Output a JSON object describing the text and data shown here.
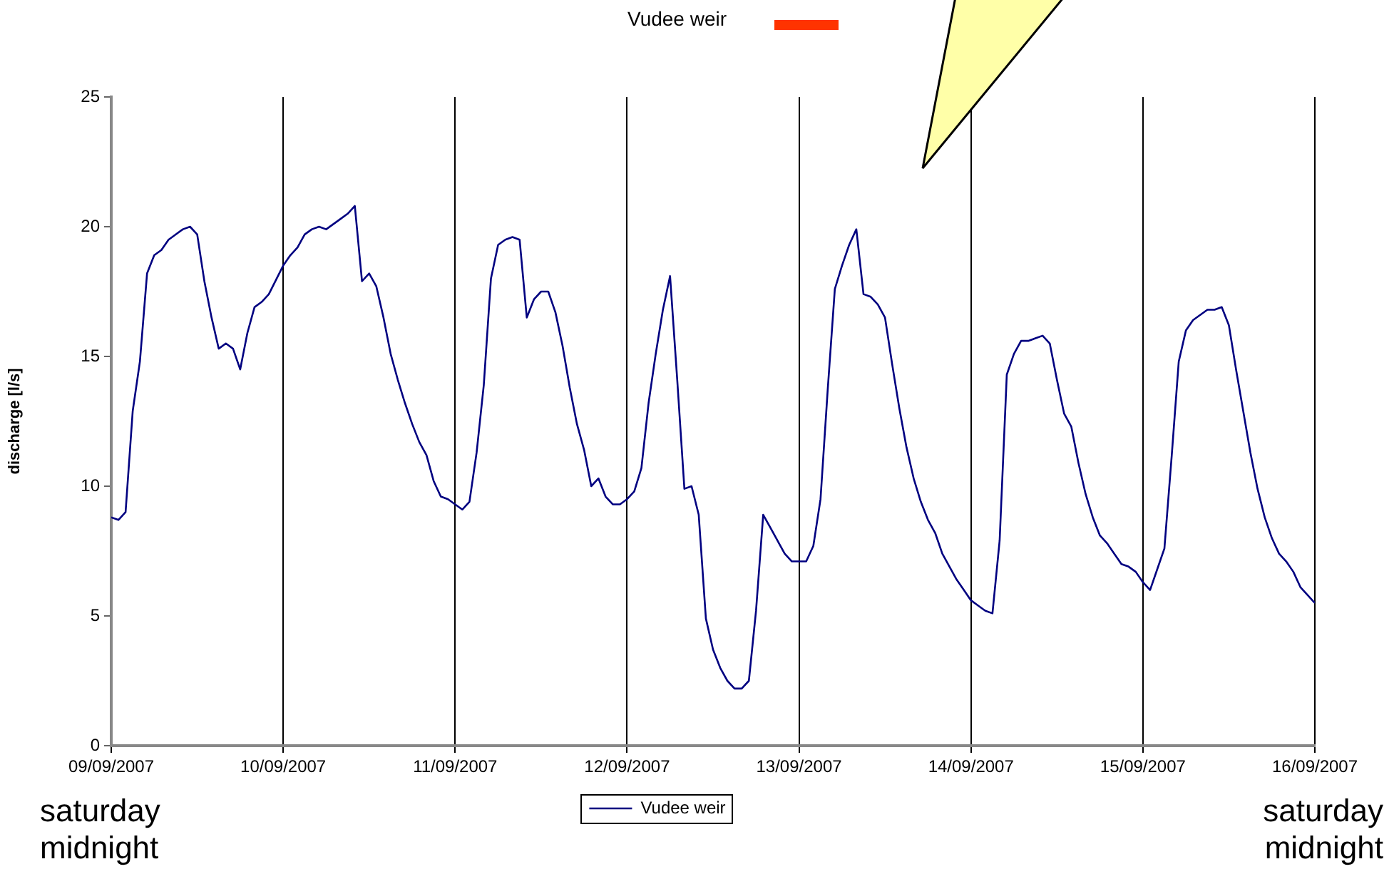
{
  "chart_data": {
    "type": "line",
    "ylabel": "discharge [l/s]",
    "annotations": [
      "Vudee weir",
      "saturday midnight",
      "saturday midnight"
    ],
    "xlim": [
      "2007-09-09",
      "2007-09-16"
    ],
    "xticks": [
      {
        "value": "2007-09-09",
        "label": "09/09/2007"
      },
      {
        "value": "2007-09-10",
        "label": "10/09/2007"
      },
      {
        "value": "2007-09-11",
        "label": "11/09/2007"
      },
      {
        "value": "2007-09-12",
        "label": "12/09/2007"
      },
      {
        "value": "2007-09-13",
        "label": "13/09/2007"
      },
      {
        "value": "2007-09-14",
        "label": "14/09/2007"
      },
      {
        "value": "2007-09-15",
        "label": "15/09/2007"
      },
      {
        "value": "2007-09-16",
        "label": "16/09/2007"
      }
    ],
    "ylim": [
      0,
      25
    ],
    "yticks": [
      0,
      5,
      10,
      15,
      20,
      25
    ],
    "grid": "x",
    "legend": "bottom",
    "marker": "none",
    "line_style": "solid",
    "series": [
      {
        "name": "Vudee weir",
        "color": "#000080",
        "x": [
          "2007-09-09T00:00",
          "2007-09-09T01:00",
          "2007-09-09T02:00",
          "2007-09-09T03:00",
          "2007-09-09T04:00",
          "2007-09-09T05:00",
          "2007-09-09T06:00",
          "2007-09-09T07:00",
          "2007-09-09T08:00",
          "2007-09-09T10:00",
          "2007-09-09T11:00",
          "2007-09-09T12:00",
          "2007-09-09T13:00",
          "2007-09-09T14:00",
          "2007-09-09T15:00",
          "2007-09-09T16:00",
          "2007-09-09T17:00",
          "2007-09-09T18:00",
          "2007-09-09T19:00",
          "2007-09-09T20:00",
          "2007-09-09T21:00",
          "2007-09-09T22:00",
          "2007-09-10T00:00",
          "2007-09-10T01:00",
          "2007-09-10T02:00",
          "2007-09-10T03:00",
          "2007-09-10T04:00",
          "2007-09-10T05:00",
          "2007-09-10T06:00",
          "2007-09-10T07:00",
          "2007-09-10T08:00",
          "2007-09-10T09:00",
          "2007-09-10T10:00",
          "2007-09-10T11:00",
          "2007-09-10T12:00",
          "2007-09-10T13:00",
          "2007-09-10T14:00",
          "2007-09-10T15:00",
          "2007-09-10T16:00",
          "2007-09-10T17:00",
          "2007-09-10T18:00",
          "2007-09-10T19:00",
          "2007-09-10T20:00",
          "2007-09-10T21:00",
          "2007-09-10T22:00",
          "2007-09-10T23:00",
          "2007-09-11T00:00",
          "2007-09-11T01:00",
          "2007-09-11T02:00",
          "2007-09-11T03:00",
          "2007-09-11T04:00",
          "2007-09-11T05:00",
          "2007-09-11T06:00",
          "2007-09-11T07:00",
          "2007-09-11T08:00",
          "2007-09-11T09:00",
          "2007-09-11T10:00",
          "2007-09-11T11:00",
          "2007-09-11T12:00",
          "2007-09-11T13:00",
          "2007-09-11T14:00",
          "2007-09-11T15:00",
          "2007-09-11T16:00",
          "2007-09-11T17:00",
          "2007-09-11T18:00",
          "2007-09-11T19:00",
          "2007-09-11T20:00",
          "2007-09-11T21:00",
          "2007-09-11T22:00",
          "2007-09-11T23:00",
          "2007-09-12T00:00",
          "2007-09-12T01:00",
          "2007-09-12T02:00",
          "2007-09-12T03:00",
          "2007-09-12T04:00",
          "2007-09-12T05:00",
          "2007-09-12T06:00",
          "2007-09-12T07:00",
          "2007-09-12T08:00",
          "2007-09-12T09:00",
          "2007-09-12T10:00",
          "2007-09-12T11:00",
          "2007-09-12T12:00",
          "2007-09-12T13:00",
          "2007-09-12T14:00",
          "2007-09-12T15:00",
          "2007-09-12T16:00",
          "2007-09-12T17:00",
          "2007-09-12T18:00",
          "2007-09-12T19:00",
          "2007-09-12T20:00",
          "2007-09-12T21:00",
          "2007-09-12T22:00",
          "2007-09-12T23:00",
          "2007-09-13T00:00",
          "2007-09-13T01:00",
          "2007-09-13T02:00",
          "2007-09-13T03:00",
          "2007-09-13T04:00",
          "2007-09-13T05:00",
          "2007-09-13T06:00",
          "2007-09-13T07:00",
          "2007-09-13T08:00",
          "2007-09-13T09:00",
          "2007-09-13T10:00",
          "2007-09-13T11:00",
          "2007-09-13T12:00",
          "2007-09-13T13:00",
          "2007-09-13T14:00",
          "2007-09-13T15:00",
          "2007-09-13T16:00",
          "2007-09-13T17:00",
          "2007-09-13T18:00",
          "2007-09-13T19:00",
          "2007-09-13T20:00",
          "2007-09-13T21:00",
          "2007-09-13T22:00",
          "2007-09-13T23:00",
          "2007-09-14T00:00",
          "2007-09-14T01:00",
          "2007-09-14T02:00",
          "2007-09-14T03:00",
          "2007-09-14T04:00",
          "2007-09-14T05:00",
          "2007-09-14T06:00",
          "2007-09-14T07:00",
          "2007-09-14T08:00",
          "2007-09-14T09:00",
          "2007-09-14T10:00",
          "2007-09-14T11:00",
          "2007-09-14T12:00",
          "2007-09-14T13:00",
          "2007-09-14T14:00",
          "2007-09-14T15:00",
          "2007-09-14T16:00",
          "2007-09-14T17:00",
          "2007-09-14T18:00",
          "2007-09-14T19:00",
          "2007-09-14T20:00",
          "2007-09-14T21:00",
          "2007-09-14T22:00",
          "2007-09-14T23:00",
          "2007-09-15T00:00",
          "2007-09-15T01:00",
          "2007-09-15T02:00",
          "2007-09-15T03:00",
          "2007-09-15T04:00",
          "2007-09-15T05:00",
          "2007-09-15T06:00",
          "2007-09-15T07:00",
          "2007-09-15T08:00",
          "2007-09-15T09:00",
          "2007-09-15T10:00",
          "2007-09-15T11:00",
          "2007-09-15T12:00",
          "2007-09-15T13:00",
          "2007-09-15T14:00",
          "2007-09-15T15:00",
          "2007-09-15T16:00",
          "2007-09-15T17:00",
          "2007-09-15T18:00",
          "2007-09-15T19:00",
          "2007-09-15T20:00",
          "2007-09-15T21:00",
          "2007-09-15T22:00",
          "2007-09-15T23:00",
          "2007-09-16T00:00"
        ],
        "values": [
          8.8,
          8.7,
          9.0,
          12.9,
          14.8,
          18.2,
          18.9,
          19.1,
          19.5,
          19.9,
          20.0,
          19.7,
          17.9,
          16.5,
          15.3,
          15.5,
          15.3,
          14.5,
          15.9,
          16.9,
          17.1,
          17.4,
          18.5,
          18.9,
          19.2,
          19.7,
          19.9,
          20.0,
          19.9,
          20.1,
          20.3,
          20.5,
          20.8,
          17.9,
          18.2,
          17.7,
          16.5,
          15.1,
          14.1,
          13.2,
          12.4,
          11.7,
          11.2,
          10.2,
          9.6,
          9.5,
          9.3,
          9.1,
          9.4,
          11.3,
          13.9,
          18.0,
          19.3,
          19.5,
          19.6,
          19.5,
          16.5,
          17.2,
          17.5,
          17.5,
          16.7,
          15.4,
          13.8,
          12.4,
          11.4,
          10.0,
          10.3,
          9.6,
          9.3,
          9.3,
          9.5,
          9.8,
          10.7,
          13.2,
          15.1,
          16.8,
          18.1,
          14.1,
          9.9,
          10.0,
          8.9,
          4.9,
          3.7,
          3.0,
          2.5,
          2.2,
          2.2,
          2.5,
          5.2,
          8.9,
          8.4,
          7.9,
          7.4,
          7.1,
          7.1,
          7.1,
          7.7,
          9.5,
          13.7,
          17.6,
          18.5,
          19.3,
          19.9,
          17.4,
          17.3,
          17.0,
          16.5,
          14.7,
          13.0,
          11.5,
          10.3,
          9.4,
          8.7,
          8.2,
          7.4,
          6.9,
          6.4,
          6.0,
          5.6,
          5.4,
          5.2,
          5.1,
          7.9,
          14.3,
          15.1,
          15.6,
          15.6,
          15.7,
          15.8,
          15.5,
          14.1,
          12.8,
          12.3,
          10.9,
          9.7,
          8.8,
          8.1,
          7.8,
          7.4,
          7.0,
          6.9,
          6.7,
          6.3,
          6.0,
          6.8,
          7.6,
          11.1,
          14.8,
          16.0,
          16.4,
          16.6,
          16.8,
          16.8,
          16.9,
          16.2,
          14.5,
          12.9,
          11.3,
          9.9,
          8.8,
          8.0,
          7.4,
          7.1,
          6.7,
          6.1,
          5.8,
          5.5
        ]
      }
    ]
  }
}
